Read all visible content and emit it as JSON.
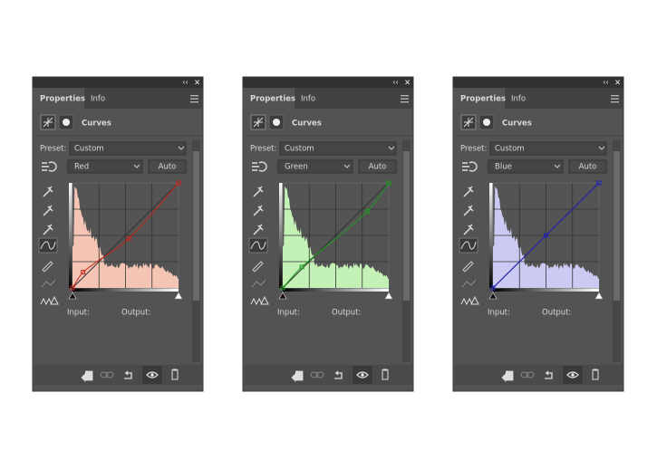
{
  "panels": [
    {
      "tabs": [
        "Properties",
        "Info"
      ],
      "title": "Curves",
      "preset_label": "Preset:",
      "preset": "Custom",
      "channel": "Red",
      "auto": "Auto",
      "input_label": "Input:",
      "output_label": "Output:"
    },
    {
      "tabs": [
        "Properties",
        "Info"
      ],
      "title": "Curves",
      "preset_label": "Preset:",
      "preset": "Custom",
      "channel": "Green",
      "auto": "Auto",
      "input_label": "Input:",
      "output_label": "Output:"
    },
    {
      "tabs": [
        "Properties",
        "Info"
      ],
      "title": "Curves",
      "preset_label": "Preset:",
      "preset": "Custom",
      "channel": "Blue",
      "auto": "Auto",
      "input_label": "Input:",
      "output_label": "Output:"
    }
  ]
}
